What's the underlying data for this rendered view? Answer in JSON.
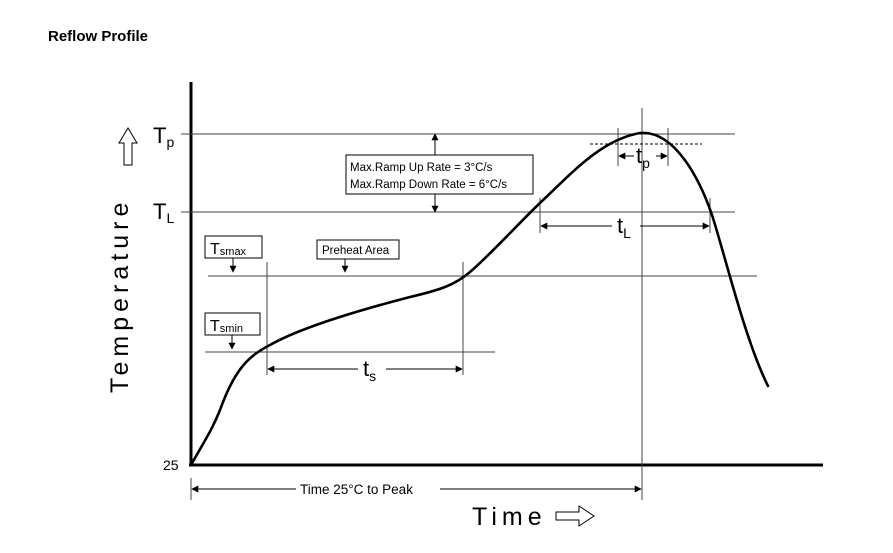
{
  "title": "Reflow Profile",
  "axes": {
    "y_label": "Temperature",
    "x_label": "Time",
    "origin_label": "25",
    "arrow_icon": "hollow-arrow-icon"
  },
  "levels": {
    "tp": {
      "main": "T",
      "sub": "p"
    },
    "tl": {
      "main": "T",
      "sub": "L"
    }
  },
  "boxes": {
    "tsmax": {
      "main": "T",
      "sub": "smax"
    },
    "tsmin": {
      "main": "T",
      "sub": "smin"
    },
    "preheat": "Preheat Area",
    "ramp_up": "Max.Ramp Up Rate = 3°C/s",
    "ramp_down": "Max.Ramp Down Rate = 6°C/s"
  },
  "durations": {
    "ts": {
      "main": "t",
      "sub": "s"
    },
    "tl": {
      "main": "t",
      "sub": "L"
    },
    "tp": {
      "main": "t",
      "sub": "p"
    },
    "time_to_peak": "Time 25°C to Peak"
  },
  "colors": {
    "line": "#000000",
    "background": "#ffffff"
  }
}
